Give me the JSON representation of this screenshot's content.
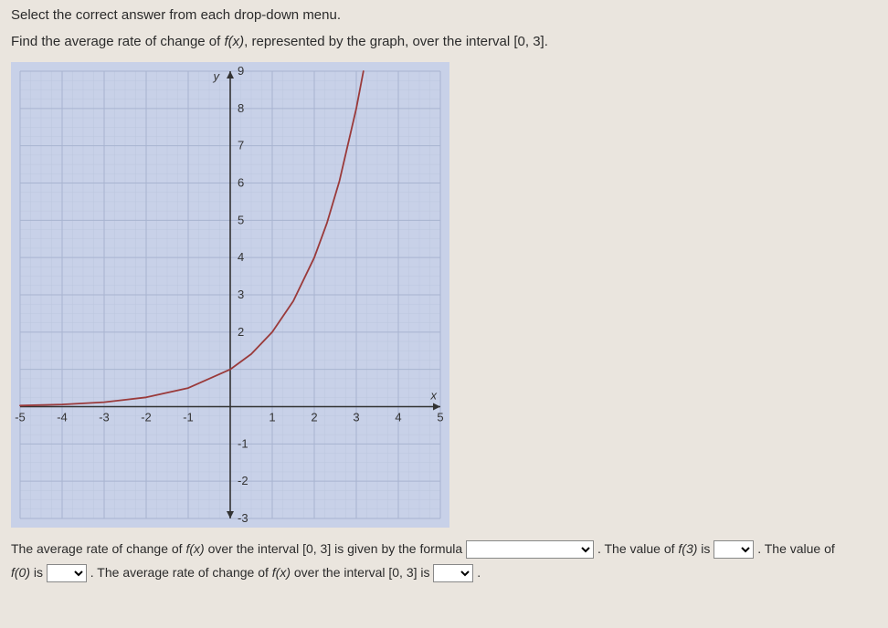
{
  "instruction": "Select the correct answer from each drop-down menu.",
  "question_prefix": "Find the average rate of change of ",
  "question_fx": "f(x)",
  "question_suffix": ", represented by the graph, over the interval [0, 3].",
  "graph": {
    "type": "line",
    "xlim": [
      -5,
      5
    ],
    "ylim": [
      -3,
      9
    ],
    "xtick_step": 1,
    "ytick_step": 1,
    "x_ticks_labeled": [
      -5,
      -4,
      -3,
      -2,
      -1,
      1,
      2,
      3,
      4,
      5
    ],
    "y_ticks_labeled": [
      -3,
      -2,
      -1,
      2,
      3,
      4,
      5,
      6,
      7,
      8,
      9
    ],
    "background_color": "#c8d1e8",
    "grid_major_color": "#a8b4d0",
    "grid_minor_color": "#bcc6de",
    "axis_color": "#333333",
    "curve_color": "#9a3a3a",
    "curve_width": 1.8,
    "x_axis_label": "x",
    "y_axis_label": "y",
    "label_fontsize": 13,
    "tick_fontsize": 13,
    "points": [
      [
        -5,
        0.03
      ],
      [
        -4,
        0.06
      ],
      [
        -3,
        0.12
      ],
      [
        -2,
        0.25
      ],
      [
        -1,
        0.5
      ],
      [
        0,
        1
      ],
      [
        0.5,
        1.41
      ],
      [
        1,
        2
      ],
      [
        1.5,
        2.83
      ],
      [
        2,
        4
      ],
      [
        2.3,
        4.92
      ],
      [
        2.6,
        6.06
      ],
      [
        3,
        8
      ],
      [
        3.17,
        9
      ]
    ]
  },
  "answer": {
    "line1_a": "The average rate of change of ",
    "line1_fx": "f(x)",
    "line1_b": " over the interval [0, 3] is given by the formula ",
    "line1_c": " . The value of ",
    "line1_f3": "f(3)",
    "line1_d": " is ",
    "line1_e": " . The value of",
    "line2_f0": "f(0)",
    "line2_a": " is ",
    "line2_b": " . The average rate of change of ",
    "line2_fx": "f(x)",
    "line2_c": " over the interval [0, 3] is ",
    "dropdown_placeholder": ""
  }
}
